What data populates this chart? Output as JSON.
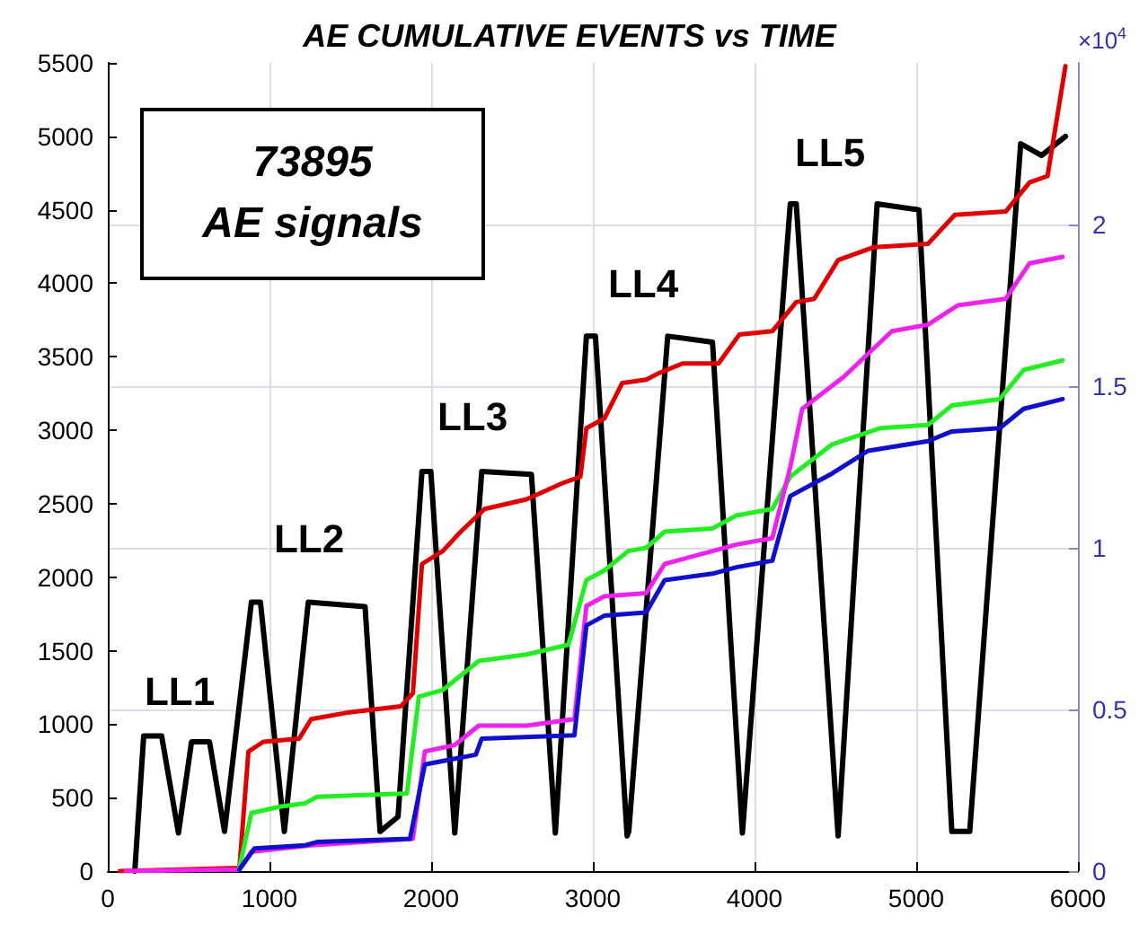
{
  "chart_data": {
    "type": "line",
    "title": "AE CUMULATIVE EVENTS vs TIME",
    "y2label": "×10$^{4}$",
    "annotations": [
      "73895\nAE signals",
      "LL1",
      "LL2",
      "LL3",
      "LL4",
      "LL5"
    ],
    "xlim": [
      0,
      6000
    ],
    "xticks": [
      0,
      1000,
      2000,
      3000,
      4000,
      5000,
      6000
    ],
    "ylim": [
      0,
      5500
    ],
    "yticks": [
      0,
      500,
      1000,
      1500,
      2000,
      2500,
      3000,
      3500,
      4000,
      4500,
      5000,
      5500
    ],
    "y2lim": [
      0,
      2.5
    ],
    "y2ticks": [
      0,
      0.5,
      1,
      1.5,
      2
    ],
    "grid": true,
    "marker": "none",
    "line_style": "solid",
    "series": [
      {
        "color": "#000000",
        "x": [
          167,
          222,
          333,
          437,
          518,
          629,
          722,
          888,
          944,
          1092,
          1240,
          1591,
          1684,
          1795,
          1943,
          1998,
          2146,
          2313,
          2620,
          2768,
          2960,
          3016,
          3212,
          3222,
          3463,
          3740,
          3925,
          4221,
          4258,
          4517,
          4758,
          5017,
          5220,
          5331,
          5646,
          5775,
          5923
        ],
        "values": [
          0,
          920,
          920,
          260,
          880,
          880,
          270,
          1830,
          1830,
          270,
          1830,
          1800,
          270,
          370,
          2720,
          2720,
          260,
          2720,
          2700,
          260,
          3640,
          3640,
          240,
          270,
          3640,
          3600,
          260,
          4540,
          4540,
          240,
          4540,
          4500,
          270,
          270,
          4950,
          4870,
          5000
        ]
      },
      {
        "color": "#e00000",
        "axis": "y2",
        "x": [
          74,
          814,
          870,
          962,
          1184,
          1258,
          1480,
          1813,
          1887,
          1943,
          2072,
          2183,
          2331,
          2590,
          2812,
          2923,
          2960,
          3071,
          3182,
          3330,
          3407,
          3555,
          3777,
          3907,
          4110,
          4258,
          4369,
          4517,
          4739,
          5072,
          5239,
          5553,
          5701,
          5812,
          5923
        ],
        "values": [
          0,
          0.01,
          0.37,
          0.4,
          0.41,
          0.47,
          0.49,
          0.51,
          0.55,
          0.95,
          0.99,
          1.05,
          1.12,
          1.15,
          1.2,
          1.22,
          1.37,
          1.4,
          1.51,
          1.52,
          1.54,
          1.57,
          1.57,
          1.66,
          1.67,
          1.76,
          1.77,
          1.89,
          1.93,
          1.94,
          2.03,
          2.04,
          2.13,
          2.15,
          2.49
        ]
      },
      {
        "color": "#22ee22",
        "axis": "y2",
        "x": [
          814,
          888,
          1073,
          1221,
          1295,
          1850,
          1924,
          2072,
          2294,
          2590,
          2849,
          2960,
          3071,
          3219,
          3330,
          3444,
          3740,
          3888,
          4110,
          4221,
          4480,
          4776,
          5072,
          5220,
          5516,
          5664,
          5905
        ],
        "values": [
          0.01,
          0.18,
          0.2,
          0.21,
          0.23,
          0.24,
          0.54,
          0.56,
          0.65,
          0.67,
          0.7,
          0.9,
          0.93,
          0.99,
          1.0,
          1.05,
          1.06,
          1.1,
          1.12,
          1.22,
          1.32,
          1.37,
          1.38,
          1.44,
          1.46,
          1.55,
          1.58
        ]
      },
      {
        "color": "#ee22ee",
        "axis": "y2",
        "x": [
          111,
          814,
          888,
          1258,
          1887,
          1961,
          2146,
          2294,
          2590,
          2886,
          2960,
          3071,
          3330,
          3444,
          3740,
          3888,
          4110,
          4221,
          4295,
          4554,
          4850,
          5072,
          5257,
          5553,
          5701,
          5905
        ],
        "values": [
          0,
          0.005,
          0.06,
          0.08,
          0.1,
          0.37,
          0.39,
          0.45,
          0.45,
          0.47,
          0.82,
          0.85,
          0.86,
          0.95,
          0.99,
          1.01,
          1.03,
          1.25,
          1.43,
          1.53,
          1.67,
          1.69,
          1.75,
          1.77,
          1.88,
          1.9
        ]
      },
      {
        "color": "#1010cc",
        "axis": "y2",
        "x": [
          814,
          907,
          1221,
          1295,
          1869,
          1961,
          2276,
          2313,
          2886,
          2960,
          3071,
          3330,
          3444,
          3740,
          3888,
          4110,
          4221,
          4480,
          4702,
          5072,
          5220,
          5516,
          5664,
          5905
        ],
        "values": [
          0.005,
          0.07,
          0.08,
          0.09,
          0.1,
          0.33,
          0.36,
          0.41,
          0.42,
          0.76,
          0.79,
          0.8,
          0.9,
          0.92,
          0.94,
          0.96,
          1.16,
          1.23,
          1.3,
          1.33,
          1.36,
          1.37,
          1.43,
          1.46
        ]
      }
    ]
  }
}
